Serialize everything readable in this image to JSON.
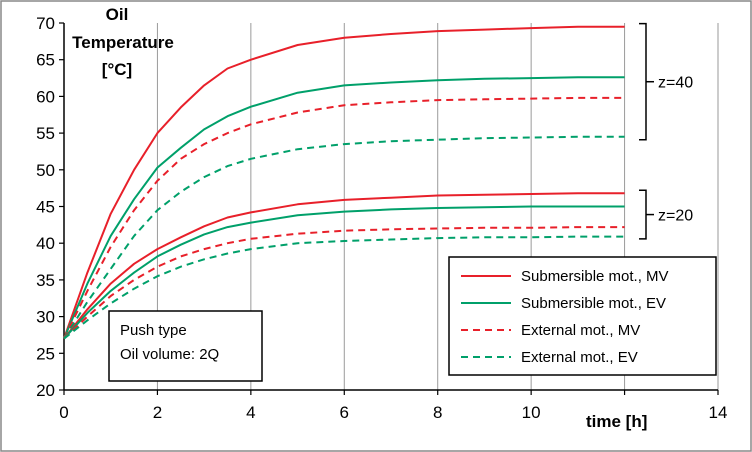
{
  "chart_data": {
    "type": "line",
    "ylabel_lines": [
      "Oil",
      "Temperature",
      "[°C]"
    ],
    "xlabel": "time [h]",
    "xlim": [
      0,
      14
    ],
    "ylim": [
      20,
      70
    ],
    "xticks": [
      "0",
      "2",
      "4",
      "6",
      "8",
      "10",
      "14"
    ],
    "yticks": [
      "20",
      "25",
      "30",
      "35",
      "40",
      "45",
      "50",
      "55",
      "60",
      "65",
      "70"
    ],
    "grid": "vertical",
    "legend_position": "bottom-right",
    "note_lines": [
      "Push type",
      "Oil volume: 2Q"
    ],
    "groups": [
      {
        "label": "z=40",
        "range": [
          54.5,
          69.5
        ]
      },
      {
        "label": "z=20",
        "range": [
          41.0,
          46.8
        ]
      }
    ],
    "colors": {
      "mv": "#e8202a",
      "ev": "#00a06a"
    },
    "legend": [
      {
        "name": "Submersible mot., MV",
        "color": "#e8202a",
        "style": "solid"
      },
      {
        "name": "Submersible mot., EV",
        "color": "#00a06a",
        "style": "solid"
      },
      {
        "name": "External mot., MV",
        "color": "#e8202a",
        "style": "dashed"
      },
      {
        "name": "External mot., EV",
        "color": "#00a06a",
        "style": "dashed"
      }
    ],
    "series": [
      {
        "color": "#e8202a",
        "style": "solid",
        "x": [
          0,
          0.5,
          1,
          1.5,
          2,
          2.5,
          3,
          3.5,
          4,
          5,
          6,
          7,
          8,
          9,
          10,
          11,
          12
        ],
        "values": [
          27,
          36,
          44,
          50,
          55,
          58.5,
          61.5,
          63.8,
          65,
          67,
          68,
          68.5,
          68.9,
          69.1,
          69.3,
          69.5,
          69.5
        ]
      },
      {
        "color": "#00a06a",
        "style": "solid",
        "x": [
          0,
          0.5,
          1,
          1.5,
          2,
          2.5,
          3,
          3.5,
          4,
          5,
          6,
          7,
          8,
          9,
          10,
          11,
          12
        ],
        "values": [
          27,
          34.5,
          41,
          46,
          50.3,
          53,
          55.5,
          57.3,
          58.6,
          60.5,
          61.5,
          61.9,
          62.2,
          62.4,
          62.5,
          62.6,
          62.6
        ]
      },
      {
        "color": "#e8202a",
        "style": "dashed",
        "x": [
          0,
          0.5,
          1,
          1.5,
          2,
          2.5,
          3,
          3.5,
          4,
          5,
          6,
          7,
          8,
          9,
          10,
          11,
          12
        ],
        "values": [
          27,
          33.5,
          39.5,
          44.5,
          48.5,
          51.5,
          53.5,
          55,
          56.2,
          57.8,
          58.8,
          59.2,
          59.5,
          59.6,
          59.7,
          59.8,
          59.8
        ]
      },
      {
        "color": "#00a06a",
        "style": "dashed",
        "x": [
          0,
          0.5,
          1,
          1.5,
          2,
          2.5,
          3,
          3.5,
          4,
          5,
          6,
          7,
          8,
          9,
          10,
          11,
          12
        ],
        "values": [
          27,
          32,
          36.5,
          41,
          44.5,
          47,
          49,
          50.5,
          51.5,
          52.8,
          53.5,
          53.9,
          54.1,
          54.3,
          54.4,
          54.5,
          54.5
        ]
      },
      {
        "color": "#e8202a",
        "style": "solid",
        "x": [
          0,
          0.5,
          1,
          1.5,
          2,
          2.5,
          3,
          3.5,
          4,
          5,
          6,
          7,
          8,
          9,
          10,
          11,
          12
        ],
        "values": [
          27,
          31,
          34.5,
          37.2,
          39.2,
          40.8,
          42.3,
          43.5,
          44.2,
          45.3,
          45.9,
          46.2,
          46.5,
          46.6,
          46.7,
          46.8,
          46.8
        ]
      },
      {
        "color": "#00a06a",
        "style": "solid",
        "x": [
          0,
          0.5,
          1,
          1.5,
          2,
          2.5,
          3,
          3.5,
          4,
          5,
          6,
          7,
          8,
          9,
          10,
          11,
          12
        ],
        "values": [
          27,
          30.5,
          33.5,
          36,
          38.2,
          39.8,
          41.2,
          42.2,
          42.8,
          43.8,
          44.3,
          44.6,
          44.8,
          44.9,
          45,
          45,
          45
        ]
      },
      {
        "color": "#e8202a",
        "style": "dashed",
        "x": [
          0,
          0.5,
          1,
          1.5,
          2,
          2.5,
          3,
          3.5,
          4,
          5,
          6,
          7,
          8,
          9,
          10,
          11,
          12
        ],
        "values": [
          27,
          30,
          32.8,
          35,
          36.8,
          38.2,
          39.2,
          40,
          40.6,
          41.3,
          41.7,
          41.9,
          42,
          42.1,
          42.1,
          42.2,
          42.2
        ]
      },
      {
        "color": "#00a06a",
        "style": "dashed",
        "x": [
          0,
          0.5,
          1,
          1.5,
          2,
          2.5,
          3,
          3.5,
          4,
          5,
          6,
          7,
          8,
          9,
          10,
          11,
          12
        ],
        "values": [
          27,
          29.5,
          31.8,
          33.8,
          35.5,
          36.8,
          37.8,
          38.6,
          39.2,
          40,
          40.3,
          40.5,
          40.7,
          40.8,
          40.8,
          40.9,
          40.9
        ]
      }
    ]
  }
}
